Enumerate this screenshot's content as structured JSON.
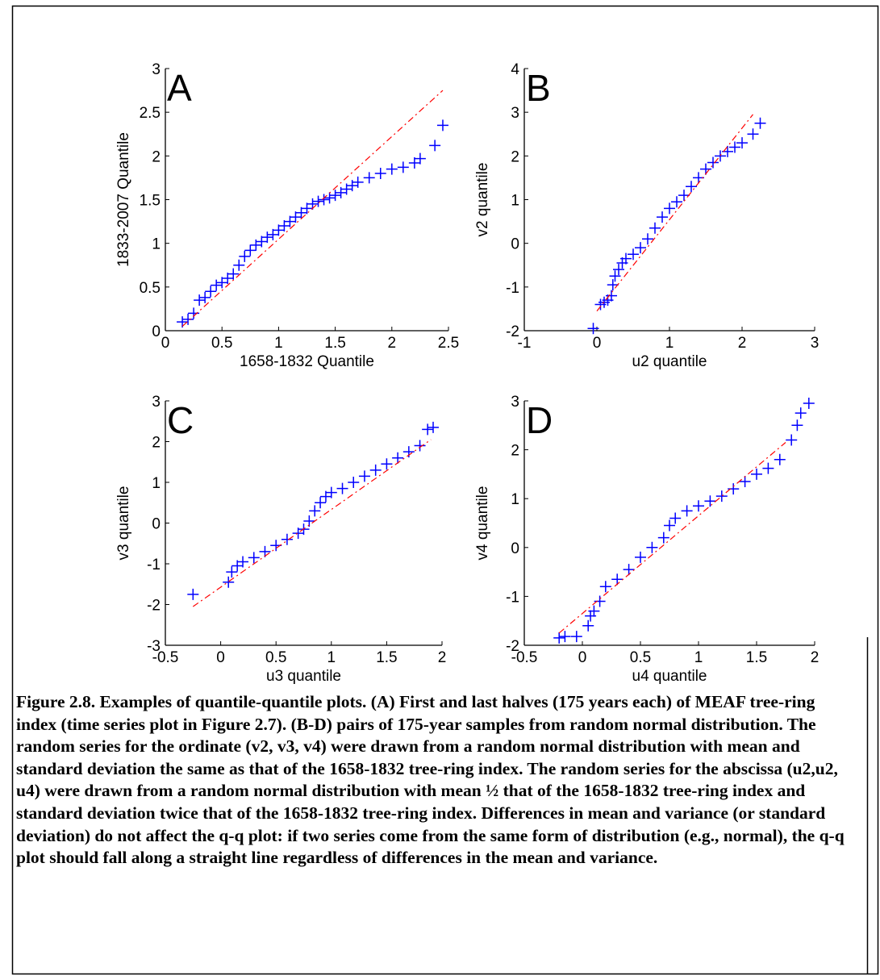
{
  "chart_data": [
    {
      "type": "scatter",
      "annotation": "A",
      "xlabel": "1658-1832 Quantile",
      "ylabel": "1833-2007 Quantile",
      "xlim": [
        0,
        2.5
      ],
      "ylim": [
        0,
        3
      ],
      "xticks": [
        0,
        0.5,
        1,
        1.5,
        2,
        2.5
      ],
      "yticks": [
        0,
        0.5,
        1,
        1.5,
        2,
        2.5,
        3
      ],
      "series": [
        {
          "color": "#0000ff",
          "marker": "+",
          "x": [
            0.15,
            0.2,
            0.25,
            0.3,
            0.35,
            0.4,
            0.45,
            0.5,
            0.55,
            0.6,
            0.65,
            0.7,
            0.75,
            0.8,
            0.85,
            0.9,
            0.95,
            1.0,
            1.05,
            1.1,
            1.15,
            1.2,
            1.25,
            1.3,
            1.35,
            1.4,
            1.45,
            1.5,
            1.55,
            1.6,
            1.65,
            1.7,
            1.8,
            1.9,
            2.0,
            2.1,
            2.2,
            2.25,
            2.38,
            2.45
          ],
          "values": [
            0.1,
            0.13,
            0.2,
            0.35,
            0.38,
            0.45,
            0.52,
            0.55,
            0.6,
            0.65,
            0.75,
            0.85,
            0.92,
            0.98,
            1.02,
            1.07,
            1.1,
            1.15,
            1.2,
            1.25,
            1.3,
            1.35,
            1.4,
            1.45,
            1.48,
            1.5,
            1.52,
            1.55,
            1.58,
            1.62,
            1.66,
            1.7,
            1.75,
            1.8,
            1.85,
            1.87,
            1.92,
            1.97,
            2.12,
            2.35
          ]
        },
        {
          "color": "#ff0000",
          "line": "dashdot",
          "x": [
            0.15,
            2.45
          ],
          "values": [
            0.05,
            2.75
          ]
        }
      ]
    },
    {
      "type": "scatter",
      "annotation": "B",
      "xlabel": "u2 quantile",
      "ylabel": "v2 quantile",
      "xlim": [
        -1,
        3
      ],
      "ylim": [
        -2,
        4
      ],
      "xticks": [
        -1,
        0,
        1,
        2,
        3
      ],
      "yticks": [
        -2,
        -1,
        0,
        1,
        2,
        3,
        4
      ],
      "series": [
        {
          "color": "#0000ff",
          "marker": "+",
          "x": [
            -0.05,
            0.05,
            0.1,
            0.15,
            0.2,
            0.22,
            0.25,
            0.3,
            0.35,
            0.4,
            0.5,
            0.6,
            0.7,
            0.8,
            0.9,
            1.0,
            1.1,
            1.2,
            1.3,
            1.4,
            1.5,
            1.6,
            1.7,
            1.8,
            1.9,
            2.0,
            2.15,
            2.25
          ],
          "values": [
            -1.95,
            -1.4,
            -1.35,
            -1.3,
            -1.2,
            -0.95,
            -0.75,
            -0.6,
            -0.45,
            -0.35,
            -0.25,
            -0.1,
            0.1,
            0.35,
            0.6,
            0.8,
            0.95,
            1.1,
            1.3,
            1.5,
            1.7,
            1.85,
            2.0,
            2.1,
            2.2,
            2.3,
            2.5,
            2.75
          ]
        },
        {
          "color": "#ff0000",
          "line": "dashdot",
          "x": [
            0.0,
            2.15
          ],
          "values": [
            -1.55,
            2.95
          ]
        }
      ]
    },
    {
      "type": "scatter",
      "annotation": "C",
      "xlabel": "u3 quantile",
      "ylabel": "v3 quantile",
      "xlim": [
        -0.5,
        2
      ],
      "ylim": [
        -3,
        3
      ],
      "xticks": [
        -0.5,
        0,
        0.5,
        1,
        1.5,
        2
      ],
      "yticks": [
        -3,
        -2,
        -1,
        0,
        1,
        2,
        3
      ],
      "series": [
        {
          "color": "#0000ff",
          "marker": "+",
          "x": [
            -0.25,
            0.07,
            0.1,
            0.15,
            0.2,
            0.3,
            0.4,
            0.5,
            0.6,
            0.7,
            0.75,
            0.8,
            0.85,
            0.9,
            0.95,
            1.0,
            1.1,
            1.2,
            1.3,
            1.4,
            1.5,
            1.6,
            1.7,
            1.8,
            1.87,
            1.92
          ],
          "values": [
            -1.75,
            -1.45,
            -1.2,
            -1.05,
            -0.95,
            -0.85,
            -0.7,
            -0.55,
            -0.4,
            -0.25,
            -0.15,
            0.05,
            0.3,
            0.5,
            0.65,
            0.75,
            0.85,
            1.0,
            1.15,
            1.3,
            1.45,
            1.6,
            1.75,
            1.9,
            2.3,
            2.35
          ]
        },
        {
          "color": "#ff0000",
          "line": "dashdot",
          "x": [
            -0.25,
            1.9
          ],
          "values": [
            -2.05,
            2.05
          ]
        }
      ]
    },
    {
      "type": "scatter",
      "annotation": "D",
      "xlabel": "u4 quantile",
      "ylabel": "v4 quantile",
      "xlim": [
        -0.5,
        2
      ],
      "ylim": [
        -2,
        3
      ],
      "xticks": [
        -0.5,
        0,
        0.5,
        1,
        1.5,
        2
      ],
      "yticks": [
        -2,
        -1,
        0,
        1,
        2,
        3
      ],
      "series": [
        {
          "color": "#0000ff",
          "marker": "+",
          "x": [
            -0.2,
            -0.15,
            -0.05,
            0.05,
            0.07,
            0.1,
            0.15,
            0.2,
            0.3,
            0.4,
            0.5,
            0.6,
            0.7,
            0.75,
            0.8,
            0.9,
            1.0,
            1.1,
            1.2,
            1.3,
            1.4,
            1.5,
            1.6,
            1.7,
            1.8,
            1.85,
            1.88,
            1.95
          ],
          "values": [
            -1.85,
            -1.82,
            -1.82,
            -1.6,
            -1.4,
            -1.3,
            -1.1,
            -0.8,
            -0.65,
            -0.45,
            -0.2,
            0.0,
            0.2,
            0.45,
            0.6,
            0.75,
            0.85,
            0.95,
            1.05,
            1.2,
            1.35,
            1.5,
            1.62,
            1.8,
            2.2,
            2.5,
            2.75,
            2.95
          ]
        },
        {
          "color": "#ff0000",
          "line": "dashdot",
          "x": [
            -0.2,
            1.75
          ],
          "values": [
            -1.75,
            2.15
          ]
        }
      ]
    }
  ],
  "caption": "Figure 2.8.  Examples of quantile-quantile plots.  (A) First and last halves (175 years each) of MEAF tree-ring index (time series plot in Figure 2.7).  (B-D) pairs of 175-year samples from random normal distribution.    The random series for the ordinate (v2, v3, v4) were drawn from a random normal distribution with mean and standard deviation the same as that of the 1658-1832 tree-ring index. The random series for the abscissa (u2,u2, u4) were drawn from a random normal distribution with mean ½ that of the 1658-1832 tree-ring index and standard deviation twice that of the 1658-1832 tree-ring index.  Differences in mean and variance (or standard deviation) do not affect the q-q plot: if two series come from the same form of distribution (e.g., normal), the q-q plot should fall along a straight line regardless of differences in the mean and variance."
}
